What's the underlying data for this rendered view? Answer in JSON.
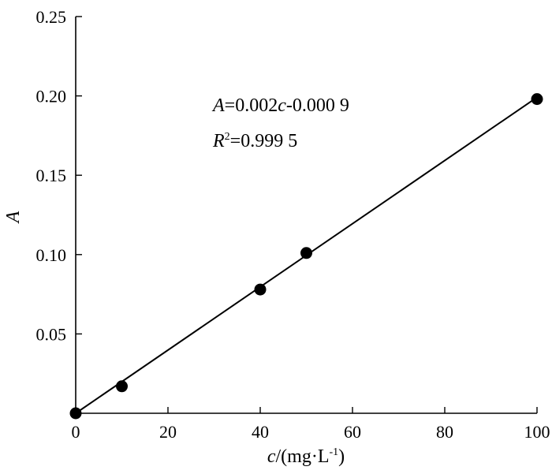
{
  "chart_data": {
    "type": "scatter",
    "xlabel": "c/(mg·L⁻¹)",
    "ylabel": "A",
    "xlim": [
      0,
      100
    ],
    "ylim": [
      0,
      0.25
    ],
    "x_ticks": [
      "0",
      "20",
      "40",
      "60",
      "80",
      "100"
    ],
    "y_ticks": [
      "0.05",
      "0.10",
      "0.15",
      "0.20",
      "0.25"
    ],
    "grid": false,
    "series": [
      {
        "points": [
          {
            "x": 0,
            "y": 0.0
          },
          {
            "x": 10,
            "y": 0.017
          },
          {
            "x": 40,
            "y": 0.078
          },
          {
            "x": 50,
            "y": 0.101
          },
          {
            "x": 100,
            "y": 0.198
          }
        ]
      }
    ],
    "fit_line": {
      "x": [
        0,
        100
      ],
      "y": [
        0.0,
        0.1991
      ]
    },
    "annotations": {
      "equation": "A=0.002c-0.000 9",
      "r_squared": "R2=0.999 5"
    },
    "marker_color": "#000000",
    "line_color": "#000000"
  }
}
